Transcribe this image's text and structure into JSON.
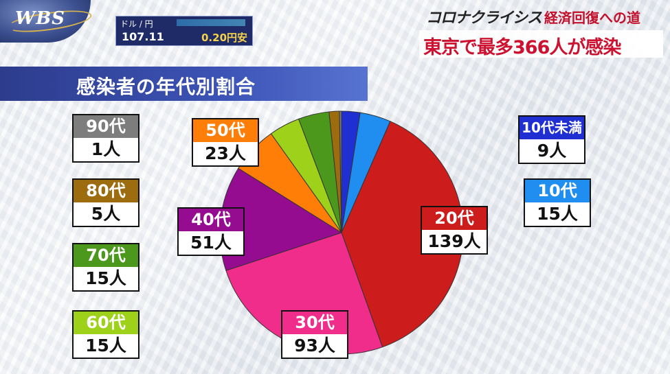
{
  "broadcast": {
    "logo": "WBS",
    "fx_label": "ドル / 円",
    "fx_rate": "107.11",
    "fx_change": "0.20円安",
    "series_title": "コロナクライシス",
    "series_sub": "経済回復への道",
    "headline": "東京で最多366人が感染"
  },
  "chart_data": {
    "type": "pie",
    "title": "感染者の年代別割合",
    "slices": [
      {
        "name": "10代未満",
        "value": 9,
        "label": "9人",
        "color": "#1f2fd1"
      },
      {
        "name": "10代",
        "value": 15,
        "label": "15人",
        "color": "#1f8ef0"
      },
      {
        "name": "20代",
        "value": 139,
        "label": "139人",
        "color": "#cc1c1c"
      },
      {
        "name": "30代",
        "value": 93,
        "label": "93人",
        "color": "#f02d8a"
      },
      {
        "name": "40代",
        "value": 51,
        "label": "51人",
        "color": "#960c91"
      },
      {
        "name": "50代",
        "value": 23,
        "label": "23人",
        "color": "#ff7e07"
      },
      {
        "name": "60代",
        "value": 15,
        "label": "15人",
        "color": "#9ed119"
      },
      {
        "name": "70代",
        "value": 15,
        "label": "15人",
        "color": "#4c981d"
      },
      {
        "name": "80代",
        "value": 5,
        "label": "5人",
        "color": "#9c6c0e"
      },
      {
        "name": "90代",
        "value": 1,
        "label": "1人",
        "color": "#7d7d7d"
      }
    ]
  }
}
